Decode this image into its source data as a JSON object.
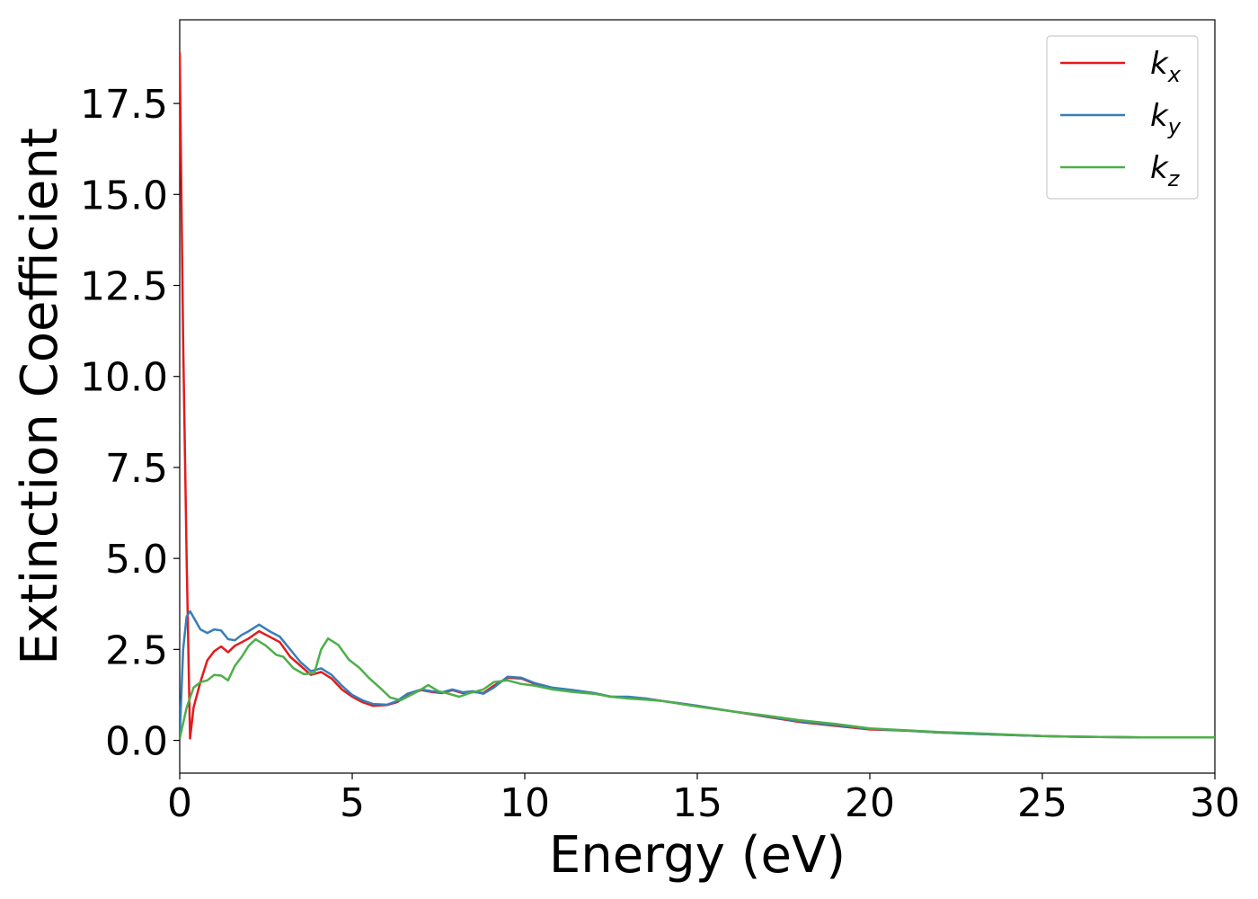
{
  "chart_data": {
    "type": "line",
    "title": "",
    "xlabel": "Energy (eV)",
    "ylabel": "Extinction Coefficient",
    "xlim": [
      0,
      30
    ],
    "ylim": [
      -0.9,
      19.8
    ],
    "x_ticks": [
      "0",
      "5",
      "10",
      "15",
      "20",
      "25",
      "30"
    ],
    "y_ticks": [
      "0.0",
      "2.5",
      "5.0",
      "7.5",
      "10.0",
      "12.5",
      "15.0",
      "17.5"
    ],
    "grid": false,
    "legend_position": "top-right",
    "series": [
      {
        "name": "k_x",
        "color": "#e41a1c",
        "points": [
          [
            0.0,
            18.9
          ],
          [
            0.1,
            11.0
          ],
          [
            0.2,
            5.0
          ],
          [
            0.3,
            0.05
          ],
          [
            0.4,
            0.9
          ],
          [
            0.6,
            1.6
          ],
          [
            0.8,
            2.2
          ],
          [
            1.0,
            2.45
          ],
          [
            1.2,
            2.58
          ],
          [
            1.4,
            2.42
          ],
          [
            1.6,
            2.6
          ],
          [
            1.8,
            2.7
          ],
          [
            2.0,
            2.8
          ],
          [
            2.3,
            3.0
          ],
          [
            2.6,
            2.85
          ],
          [
            2.9,
            2.7
          ],
          [
            3.2,
            2.3
          ],
          [
            3.5,
            2.05
          ],
          [
            3.8,
            1.8
          ],
          [
            4.1,
            1.88
          ],
          [
            4.4,
            1.7
          ],
          [
            4.7,
            1.4
          ],
          [
            5.0,
            1.2
          ],
          [
            5.3,
            1.05
          ],
          [
            5.6,
            0.95
          ],
          [
            6.0,
            0.97
          ],
          [
            6.3,
            1.05
          ],
          [
            6.6,
            1.25
          ],
          [
            7.0,
            1.38
          ],
          [
            7.3,
            1.33
          ],
          [
            7.6,
            1.3
          ],
          [
            7.9,
            1.38
          ],
          [
            8.2,
            1.3
          ],
          [
            8.5,
            1.33
          ],
          [
            8.8,
            1.3
          ],
          [
            9.1,
            1.5
          ],
          [
            9.5,
            1.72
          ],
          [
            9.9,
            1.7
          ],
          [
            10.3,
            1.55
          ],
          [
            10.8,
            1.42
          ],
          [
            11.5,
            1.35
          ],
          [
            12.0,
            1.3
          ],
          [
            12.5,
            1.2
          ],
          [
            13.0,
            1.18
          ],
          [
            13.5,
            1.15
          ],
          [
            14.0,
            1.08
          ],
          [
            15.0,
            0.95
          ],
          [
            16.0,
            0.8
          ],
          [
            17.0,
            0.65
          ],
          [
            18.0,
            0.5
          ],
          [
            19.0,
            0.4
          ],
          [
            20.0,
            0.3
          ],
          [
            21.0,
            0.27
          ],
          [
            22.0,
            0.22
          ],
          [
            23.0,
            0.18
          ],
          [
            24.0,
            0.15
          ],
          [
            25.0,
            0.12
          ],
          [
            26.0,
            0.1
          ],
          [
            27.0,
            0.09
          ],
          [
            28.0,
            0.08
          ],
          [
            29.0,
            0.08
          ],
          [
            30.0,
            0.08
          ]
        ]
      },
      {
        "name": "k_y",
        "color": "#377eb8",
        "points": [
          [
            0.0,
            0.1
          ],
          [
            0.1,
            2.5
          ],
          [
            0.2,
            3.4
          ],
          [
            0.3,
            3.55
          ],
          [
            0.45,
            3.3
          ],
          [
            0.6,
            3.05
          ],
          [
            0.8,
            2.95
          ],
          [
            1.0,
            3.05
          ],
          [
            1.2,
            3.02
          ],
          [
            1.4,
            2.78
          ],
          [
            1.6,
            2.75
          ],
          [
            1.8,
            2.9
          ],
          [
            2.0,
            3.0
          ],
          [
            2.3,
            3.18
          ],
          [
            2.6,
            3.0
          ],
          [
            2.9,
            2.85
          ],
          [
            3.2,
            2.5
          ],
          [
            3.5,
            2.15
          ],
          [
            3.8,
            1.9
          ],
          [
            4.1,
            1.98
          ],
          [
            4.4,
            1.8
          ],
          [
            4.7,
            1.5
          ],
          [
            5.0,
            1.25
          ],
          [
            5.3,
            1.1
          ],
          [
            5.6,
            1.0
          ],
          [
            6.0,
            0.98
          ],
          [
            6.3,
            1.08
          ],
          [
            6.6,
            1.28
          ],
          [
            7.0,
            1.4
          ],
          [
            7.3,
            1.35
          ],
          [
            7.6,
            1.32
          ],
          [
            7.9,
            1.4
          ],
          [
            8.2,
            1.32
          ],
          [
            8.5,
            1.35
          ],
          [
            8.8,
            1.28
          ],
          [
            9.1,
            1.45
          ],
          [
            9.5,
            1.75
          ],
          [
            9.9,
            1.72
          ],
          [
            10.3,
            1.57
          ],
          [
            10.8,
            1.45
          ],
          [
            11.5,
            1.37
          ],
          [
            12.0,
            1.3
          ],
          [
            12.5,
            1.2
          ],
          [
            13.0,
            1.2
          ],
          [
            13.5,
            1.15
          ],
          [
            14.0,
            1.08
          ],
          [
            15.0,
            0.95
          ],
          [
            16.0,
            0.8
          ],
          [
            17.0,
            0.66
          ],
          [
            18.0,
            0.52
          ],
          [
            19.0,
            0.42
          ],
          [
            20.0,
            0.32
          ],
          [
            21.0,
            0.27
          ],
          [
            22.0,
            0.22
          ],
          [
            23.0,
            0.18
          ],
          [
            24.0,
            0.15
          ],
          [
            25.0,
            0.12
          ],
          [
            26.0,
            0.1
          ],
          [
            27.0,
            0.09
          ],
          [
            28.0,
            0.08
          ],
          [
            29.0,
            0.08
          ],
          [
            30.0,
            0.08
          ]
        ]
      },
      {
        "name": "k_z",
        "color": "#4daf4a",
        "points": [
          [
            0.0,
            0.05
          ],
          [
            0.2,
            0.9
          ],
          [
            0.4,
            1.45
          ],
          [
            0.6,
            1.6
          ],
          [
            0.8,
            1.65
          ],
          [
            1.0,
            1.8
          ],
          [
            1.2,
            1.78
          ],
          [
            1.4,
            1.65
          ],
          [
            1.6,
            2.05
          ],
          [
            1.8,
            2.3
          ],
          [
            2.0,
            2.6
          ],
          [
            2.2,
            2.78
          ],
          [
            2.5,
            2.6
          ],
          [
            2.8,
            2.35
          ],
          [
            3.0,
            2.3
          ],
          [
            3.3,
            1.98
          ],
          [
            3.6,
            1.82
          ],
          [
            3.9,
            1.85
          ],
          [
            4.1,
            2.5
          ],
          [
            4.3,
            2.8
          ],
          [
            4.6,
            2.62
          ],
          [
            4.9,
            2.22
          ],
          [
            5.2,
            2.0
          ],
          [
            5.5,
            1.7
          ],
          [
            5.8,
            1.45
          ],
          [
            6.1,
            1.18
          ],
          [
            6.4,
            1.1
          ],
          [
            6.7,
            1.25
          ],
          [
            7.0,
            1.4
          ],
          [
            7.2,
            1.52
          ],
          [
            7.5,
            1.35
          ],
          [
            7.8,
            1.28
          ],
          [
            8.1,
            1.2
          ],
          [
            8.4,
            1.3
          ],
          [
            8.8,
            1.4
          ],
          [
            9.1,
            1.6
          ],
          [
            9.5,
            1.65
          ],
          [
            9.9,
            1.55
          ],
          [
            10.3,
            1.5
          ],
          [
            10.8,
            1.4
          ],
          [
            11.5,
            1.32
          ],
          [
            12.0,
            1.28
          ],
          [
            12.5,
            1.2
          ],
          [
            13.0,
            1.15
          ],
          [
            13.5,
            1.12
          ],
          [
            14.0,
            1.08
          ],
          [
            15.0,
            0.93
          ],
          [
            16.0,
            0.8
          ],
          [
            17.0,
            0.68
          ],
          [
            18.0,
            0.55
          ],
          [
            19.0,
            0.45
          ],
          [
            20.0,
            0.33
          ],
          [
            21.0,
            0.28
          ],
          [
            22.0,
            0.23
          ],
          [
            23.0,
            0.2
          ],
          [
            24.0,
            0.16
          ],
          [
            25.0,
            0.12
          ],
          [
            26.0,
            0.1
          ],
          [
            27.0,
            0.09
          ],
          [
            28.0,
            0.08
          ],
          [
            29.0,
            0.08
          ],
          [
            30.0,
            0.08
          ]
        ]
      }
    ]
  }
}
